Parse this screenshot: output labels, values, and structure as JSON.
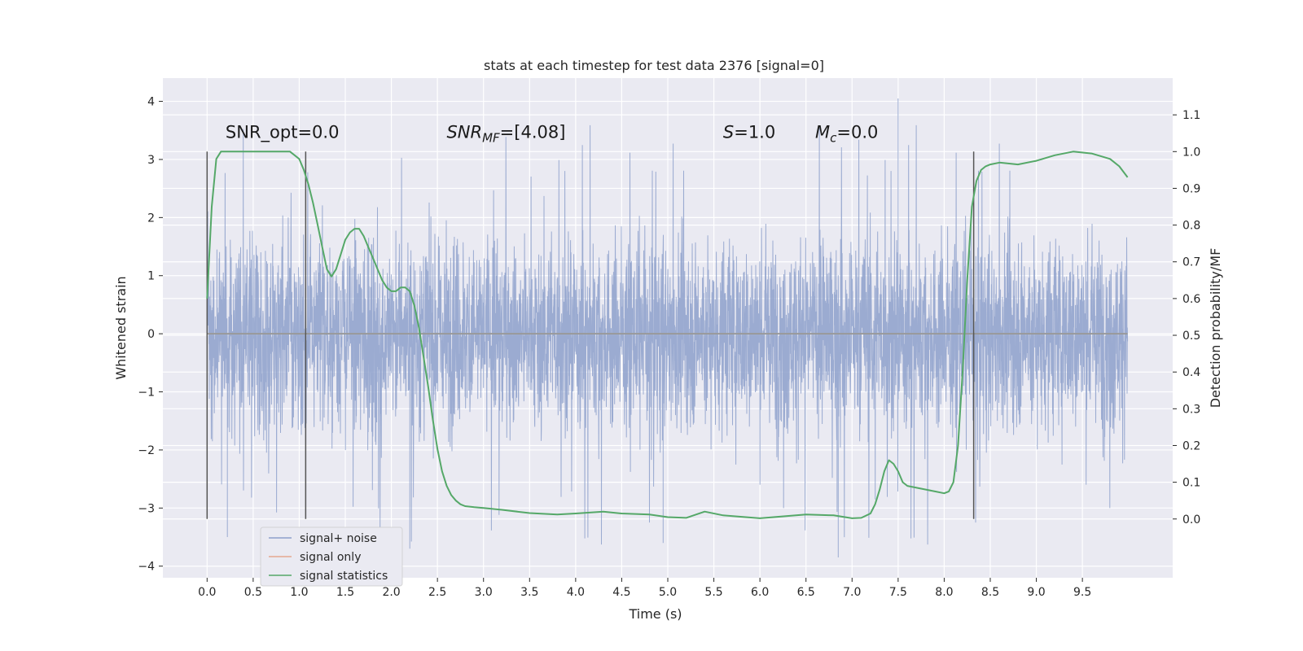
{
  "chart_data": {
    "type": "line",
    "title": "stats at each timestep for test data 2376 [signal=0]",
    "xlabel": "Time (s)",
    "ylabel": "Whitened strain",
    "y2label": "Detection probability/MF",
    "xlim": [
      -0.48,
      10.48
    ],
    "ylim": [
      -4.2,
      4.4
    ],
    "y2lim": [
      -0.16,
      1.2
    ],
    "x_ticks": [
      0.0,
      0.5,
      1.0,
      1.5,
      2.0,
      2.5,
      3.0,
      3.5,
      4.0,
      4.5,
      5.0,
      5.5,
      6.0,
      6.5,
      7.0,
      7.5,
      8.0,
      8.5,
      9.0,
      9.5
    ],
    "x_tick_labels": [
      "0.0",
      "0.5",
      "1.0",
      "1.5",
      "2.0",
      "2.5",
      "3.0",
      "3.5",
      "4.0",
      "4.5",
      "5.0",
      "5.5",
      "6.0",
      "6.5",
      "7.0",
      "7.5",
      "8.0",
      "8.5",
      "9.0",
      "9.5"
    ],
    "y_ticks": [
      -4,
      -3,
      -2,
      -1,
      0,
      1,
      2,
      3,
      4
    ],
    "y_tick_labels": [
      "−4",
      "−3",
      "−2",
      "−1",
      "0",
      "1",
      "2",
      "3",
      "4"
    ],
    "y2_ticks": [
      0.0,
      0.1,
      0.2,
      0.3,
      0.4,
      0.5,
      0.6,
      0.7,
      0.8,
      0.9,
      1.0,
      1.1
    ],
    "y2_tick_labels": [
      "0.0",
      "0.1",
      "0.2",
      "0.3",
      "0.4",
      "0.5",
      "0.6",
      "0.7",
      "0.8",
      "0.9",
      "1.0",
      "1.1"
    ],
    "grid": true,
    "legend_position": "lower-left",
    "colors": {
      "noise": "#8da0cb",
      "signal": "#e5a88f",
      "stats": "#55a868",
      "vline": "#555555",
      "background": "#eaeaf2",
      "grid": "#ffffff"
    },
    "series": [
      {
        "name": "signal+ noise",
        "axis": "left",
        "x_range": [
          0.0,
          9.99
        ],
        "envelope_bulk": [
          -1.4,
          1.4
        ],
        "peak_max": 4.05,
        "peak_min": -3.85,
        "note_values": "dense whitened noise trace"
      },
      {
        "name": "signal only",
        "axis": "left",
        "x": [
          0.0,
          9.99
        ],
        "y": [
          0.0,
          0.0
        ]
      },
      {
        "name": "signal statistics",
        "axis": "right",
        "x": [
          0.0,
          0.05,
          0.1,
          0.15,
          0.2,
          0.3,
          0.4,
          0.5,
          0.6,
          0.7,
          0.8,
          0.9,
          0.95,
          1.0,
          1.05,
          1.1,
          1.15,
          1.2,
          1.25,
          1.3,
          1.35,
          1.4,
          1.45,
          1.5,
          1.55,
          1.6,
          1.65,
          1.7,
          1.75,
          1.8,
          1.85,
          1.9,
          1.95,
          2.0,
          2.05,
          2.1,
          2.15,
          2.2,
          2.25,
          2.3,
          2.35,
          2.4,
          2.45,
          2.5,
          2.55,
          2.6,
          2.65,
          2.7,
          2.75,
          2.8,
          2.9,
          3.0,
          3.2,
          3.5,
          3.8,
          4.0,
          4.3,
          4.5,
          4.8,
          5.0,
          5.2,
          5.4,
          5.6,
          6.0,
          6.5,
          6.8,
          7.0,
          7.1,
          7.2,
          7.25,
          7.3,
          7.35,
          7.4,
          7.45,
          7.5,
          7.55,
          7.6,
          7.7,
          7.8,
          7.9,
          8.0,
          8.05,
          8.1,
          8.15,
          8.2,
          8.25,
          8.3,
          8.35,
          8.4,
          8.45,
          8.5,
          8.6,
          8.8,
          9.0,
          9.2,
          9.4,
          9.6,
          9.8,
          9.9,
          9.99
        ],
        "y": [
          0.6,
          0.85,
          0.98,
          1.0,
          1.0,
          1.0,
          1.0,
          1.0,
          1.0,
          1.0,
          1.0,
          1.0,
          0.99,
          0.98,
          0.95,
          0.91,
          0.86,
          0.8,
          0.74,
          0.68,
          0.66,
          0.68,
          0.72,
          0.76,
          0.78,
          0.79,
          0.79,
          0.77,
          0.74,
          0.71,
          0.68,
          0.65,
          0.63,
          0.62,
          0.62,
          0.63,
          0.63,
          0.62,
          0.58,
          0.52,
          0.44,
          0.36,
          0.27,
          0.19,
          0.13,
          0.09,
          0.065,
          0.05,
          0.04,
          0.035,
          0.032,
          0.03,
          0.025,
          0.016,
          0.012,
          0.015,
          0.02,
          0.015,
          0.012,
          0.005,
          0.003,
          0.02,
          0.01,
          0.002,
          0.012,
          0.01,
          0.002,
          0.003,
          0.015,
          0.04,
          0.08,
          0.13,
          0.16,
          0.15,
          0.13,
          0.1,
          0.09,
          0.085,
          0.08,
          0.075,
          0.07,
          0.075,
          0.1,
          0.2,
          0.4,
          0.65,
          0.85,
          0.92,
          0.95,
          0.96,
          0.965,
          0.97,
          0.965,
          0.975,
          0.99,
          1.0,
          0.995,
          0.98,
          0.96,
          0.93
        ]
      }
    ],
    "vertical_lines": [
      0.0,
      1.07,
      8.32
    ],
    "annotations": [
      {
        "parts": [
          {
            "t": "SNR_opt=0.0",
            "i": false
          }
        ],
        "x": 0.2,
        "y": 3.2
      },
      {
        "parts": [
          {
            "t": "SNR",
            "i": true
          },
          {
            "t": "MF",
            "i": true,
            "sub": true
          },
          {
            "t": "=[4.08]",
            "i": false
          }
        ],
        "x": 2.6,
        "y": 3.2
      },
      {
        "parts": [
          {
            "t": "S",
            "i": true
          },
          {
            "t": "=1.0",
            "i": false
          }
        ],
        "x": 5.6,
        "y": 3.2
      },
      {
        "parts": [
          {
            "t": "M",
            "i": true
          },
          {
            "t": "c",
            "i": true,
            "sub": true
          },
          {
            "t": "=0.0",
            "i": false
          }
        ],
        "x": 6.6,
        "y": 3.2
      }
    ]
  }
}
